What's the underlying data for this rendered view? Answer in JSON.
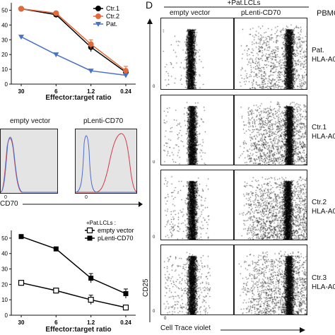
{
  "panel_label_d": "D",
  "chart_data": [
    {
      "type": "line",
      "xlabel": "Effector:target ratio",
      "categories": [
        "30",
        "6",
        "1.2",
        "0.24"
      ],
      "ylim": [
        0,
        55
      ],
      "yticks": [
        "0",
        "10",
        "20",
        "30",
        "40",
        "50"
      ],
      "series": [
        {
          "name": "Ctr.1",
          "values": [
            51,
            47,
            25,
            8
          ],
          "color": "#000000",
          "marker": "circle"
        },
        {
          "name": "Ctr.2",
          "values": [
            51,
            48,
            27,
            9
          ],
          "color": "#e2693a",
          "marker": "circle"
        },
        {
          "name": "Pat.",
          "values": [
            32,
            20,
            9,
            6
          ],
          "color": "#4a72c4",
          "marker": "triangle-down"
        }
      ]
    },
    {
      "type": "line",
      "xlabel": "Effector:target ratio",
      "categories": [
        "30",
        "6",
        "1.2",
        "0.24"
      ],
      "ylim": [
        0,
        55
      ],
      "yticks": [
        "0",
        "10",
        "20",
        "30",
        "40",
        "50"
      ],
      "legend_title": "+Pat.LCLs :",
      "series": [
        {
          "name": "empty vector",
          "values": [
            21,
            16,
            10,
            5
          ],
          "color": "#000000",
          "marker": "open-square"
        },
        {
          "name": "pLenti-CD70",
          "values": [
            51,
            43,
            24,
            14
          ],
          "color": "#000000",
          "marker": "filled-square"
        }
      ]
    }
  ],
  "histograms": {
    "labels": [
      "empty vector",
      "pLenti-CD70"
    ],
    "axis_label": "CD70",
    "tick0": "0"
  },
  "facs": {
    "header_group": "+Pat.LCLs",
    "col_labels": [
      "empty vector",
      "pLenti-CD70"
    ],
    "pbmc_label": "PBMC",
    "rows": [
      {
        "line1": "Pat.",
        "line2": "HLA-A0"
      },
      {
        "line1": "Ctr.1",
        "line2": "HLA-A0"
      },
      {
        "line1": "Ctr.2",
        "line2": "HLA-A0"
      },
      {
        "line1": "Ctr.3",
        "line2": "HLA-A0"
      }
    ],
    "ylabel": "CD25",
    "xlabel": "Cell Trace violet",
    "tick0": "0"
  }
}
